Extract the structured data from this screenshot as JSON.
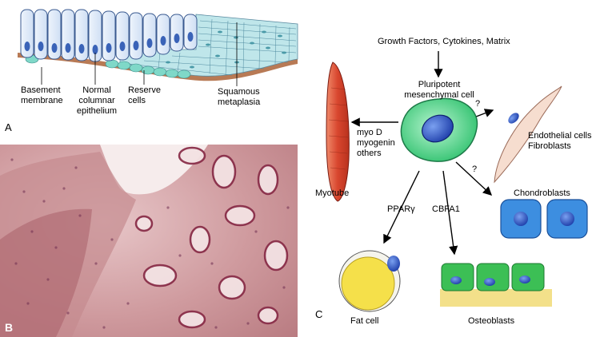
{
  "panels": {
    "a": {
      "letter": "A",
      "labels": {
        "basement_membrane": [
          "Basement",
          "membrane"
        ],
        "normal_columnar": [
          "Normal",
          "columnar",
          "epithelium"
        ],
        "reserve_cells": [
          "Reserve",
          "cells"
        ],
        "squamous_metaplasia": [
          "Squamous",
          "metaplasia"
        ]
      }
    },
    "b": {
      "letter": "B"
    },
    "c": {
      "letter": "C",
      "labels": {
        "signals": "Growth Factors, Cytokines, Matrix",
        "pluripotent": [
          "Pluripotent",
          "mesenchymal cell"
        ],
        "myo_factors": [
          "myo D",
          "myogenin",
          "others"
        ],
        "myotube": "Myotube",
        "endothelial": [
          "Endothelial cells",
          "Fibroblasts"
        ],
        "question_1": "?",
        "question_2": "?",
        "chondroblasts": "Chondroblasts",
        "ppar": "PPARγ",
        "cbfa1": "CBFA1",
        "fat_cell": "Fat cell",
        "osteoblasts": "Osteoblasts"
      }
    }
  },
  "colors": {
    "columnar": "#dce8f8",
    "squamous": "#bfe6ea",
    "basement": "#b87a55",
    "stem_cell": "#3fd07a",
    "nucleus": "#2050c8",
    "myotube": "#d8462e",
    "fat_cell": "#f5e04a",
    "chondroblast": "#3d8ee0",
    "osteoblast": "#3cbf55",
    "osteoid": "#f3e08a",
    "histology": "#c98a8e"
  }
}
